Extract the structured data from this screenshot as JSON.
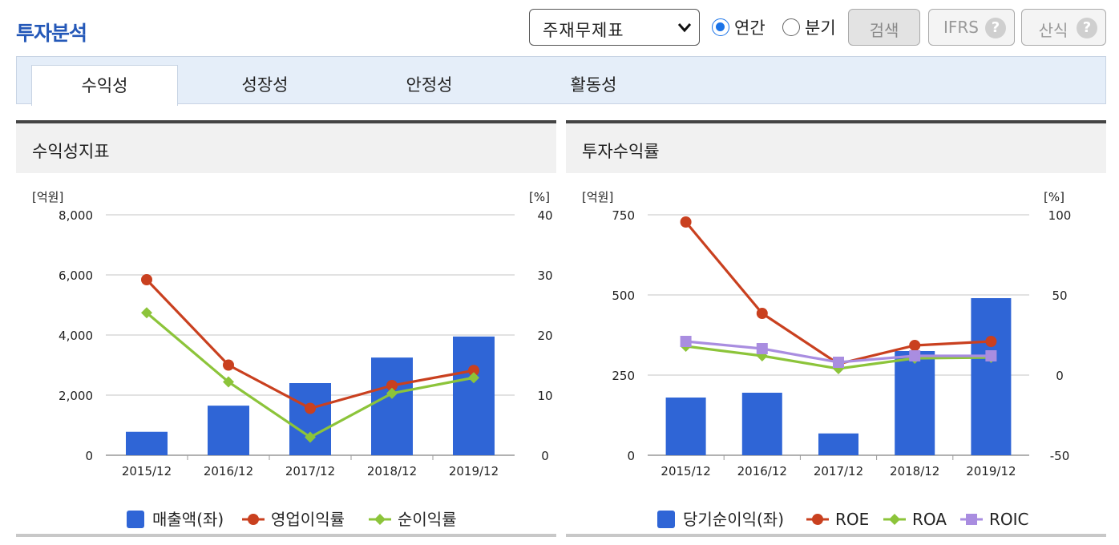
{
  "page_title": "투자분석",
  "controls": {
    "statement_select": "주재무제표",
    "radio_annual": "연간",
    "radio_quarter": "분기",
    "search_button": "검색",
    "ifrs_button": "IFRS",
    "formula_button": "산식",
    "help_glyph": "?"
  },
  "tabs": [
    {
      "label": "수익성",
      "active": true
    },
    {
      "label": "성장성",
      "active": false
    },
    {
      "label": "안정성",
      "active": false
    },
    {
      "label": "활동성",
      "active": false
    }
  ],
  "colors": {
    "bar": "#2f65d6",
    "red": "#c9401f",
    "green": "#8cc43a",
    "purple": "#a98de0",
    "accent": "#2458b8"
  },
  "chart_data": [
    {
      "title": "수익성지표",
      "type": "bar+line",
      "left_unit": "[억원]",
      "right_unit": "[%]",
      "categories": [
        "2015/12",
        "2016/12",
        "2017/12",
        "2018/12",
        "2019/12"
      ],
      "left_axis": {
        "ylim": [
          0,
          8000
        ],
        "ticks": [
          "0",
          "2,000",
          "4,000",
          "6,000",
          "8,000"
        ]
      },
      "right_axis": {
        "ylim": [
          0,
          40
        ],
        "ticks": [
          "0",
          "10",
          "20",
          "30",
          "40"
        ]
      },
      "bars": {
        "name": "매출액(좌)",
        "axis": "left",
        "values": [
          780,
          1650,
          2400,
          3250,
          3950
        ]
      },
      "lines": [
        {
          "name": "영업이익률",
          "axis": "right",
          "color": "red",
          "marker": "circle",
          "values": [
            29.2,
            15.0,
            7.8,
            11.6,
            14.1
          ]
        },
        {
          "name": "순이익률",
          "axis": "right",
          "color": "green",
          "marker": "diamond",
          "values": [
            23.7,
            12.2,
            3.0,
            10.3,
            12.9
          ]
        }
      ],
      "legend_position": "bottom",
      "grid": true
    },
    {
      "title": "투자수익률",
      "type": "bar+line",
      "left_unit": "[억원]",
      "right_unit": "[%]",
      "categories": [
        "2015/12",
        "2016/12",
        "2017/12",
        "2018/12",
        "2019/12"
      ],
      "left_axis": {
        "ylim": [
          0,
          750
        ],
        "ticks": [
          "0",
          "250",
          "500",
          "750"
        ]
      },
      "right_axis": {
        "ylim": [
          -50,
          100
        ],
        "ticks": [
          "-50",
          "0",
          "50",
          "100"
        ]
      },
      "bars": {
        "name": "당기순이익(좌)",
        "axis": "left",
        "values": [
          180,
          195,
          68,
          325,
          490
        ]
      },
      "lines": [
        {
          "name": "ROE",
          "axis": "right",
          "color": "red",
          "marker": "circle",
          "values": [
            95.5,
            38.5,
            7.0,
            18.5,
            21.0
          ]
        },
        {
          "name": "ROA",
          "axis": "right",
          "color": "green",
          "marker": "diamond",
          "values": [
            18.0,
            12.0,
            4.0,
            10.5,
            11.0
          ]
        },
        {
          "name": "ROIC",
          "axis": "right",
          "color": "purple",
          "marker": "square",
          "values": [
            21.0,
            16.5,
            8.0,
            12.0,
            12.0
          ]
        }
      ],
      "legend_position": "bottom",
      "grid": true
    }
  ]
}
